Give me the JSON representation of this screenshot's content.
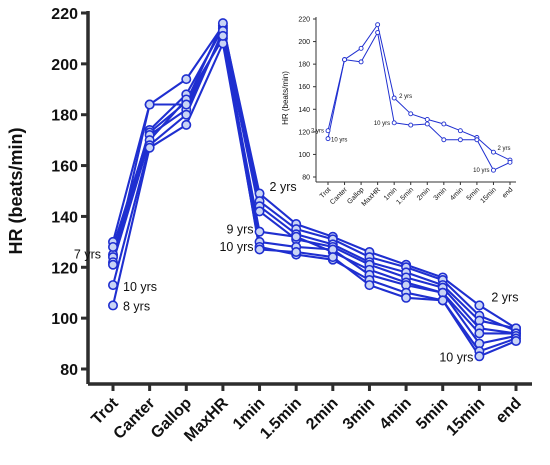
{
  "chart_data": [
    {
      "type": "line",
      "ylabel": "HR (beats/min)",
      "xlabel": "",
      "ylim": [
        80,
        220
      ],
      "yticks": [
        80,
        100,
        120,
        140,
        160,
        180,
        200,
        220
      ],
      "categories": [
        "Trot",
        "Canter",
        "Gallop",
        "MaxHR",
        "1min",
        "1.5min",
        "2min",
        "3min",
        "4min",
        "5min",
        "15min",
        "end"
      ],
      "color": "#1f2fd0",
      "series": [
        {
          "values": [
            130,
            184,
            194,
            215,
            149,
            137,
            132,
            126,
            121,
            116,
            105,
            96
          ]
        },
        {
          "values": [
            125,
            174,
            188,
            214,
            146,
            135,
            131,
            124,
            120,
            115,
            101,
            95
          ]
        },
        {
          "values": [
            128,
            173,
            185,
            216,
            144,
            133,
            129,
            122,
            118,
            113,
            99,
            96
          ]
        },
        {
          "values": [
            124,
            172,
            182,
            212,
            142,
            131,
            128,
            121,
            116,
            112,
            96,
            94
          ]
        },
        {
          "values": [
            122,
            170,
            186,
            210,
            134,
            132,
            126,
            119,
            114,
            110,
            94,
            94
          ]
        },
        {
          "values": [
            113,
            168,
            180,
            213,
            130,
            128,
            127,
            117,
            113,
            110,
            90,
            93
          ]
        },
        {
          "values": [
            105,
            167,
            176,
            208,
            128,
            125,
            123,
            115,
            110,
            107,
            87,
            92
          ]
        },
        {
          "values": [
            121,
            184,
            184,
            211,
            127,
            126,
            124,
            113,
            108,
            107,
            85,
            91
          ]
        }
      ],
      "annotations": [
        {
          "text": "7 yrs",
          "category": "Trot",
          "y": 125
        },
        {
          "text": "10 yrs",
          "category": "Trot",
          "y": 113
        },
        {
          "text": "8 yrs",
          "category": "Trot",
          "y": 105
        },
        {
          "text": "2 yrs",
          "category": "1min",
          "y": 150
        },
        {
          "text": "9 yrs",
          "category": "1min",
          "y": 134
        },
        {
          "text": "10 yrs",
          "category": "1min",
          "y": 128
        },
        {
          "text": "2 yrs",
          "category": "15min",
          "y": 105
        },
        {
          "text": "10 yrs",
          "category": "15min",
          "y": 85
        }
      ]
    },
    {
      "type": "line",
      "ylabel": "HR (beats/min)",
      "xlabel": "",
      "ylim": [
        80,
        220
      ],
      "yticks": [
        80,
        100,
        120,
        140,
        160,
        180,
        200,
        220
      ],
      "categories": [
        "Trot",
        "Canter",
        "Gallop",
        "MaxHR",
        "1min",
        "1.5min",
        "2min",
        "3min",
        "4min",
        "5min",
        "15min",
        "end"
      ],
      "color": "#1f2fd0",
      "series": [
        {
          "values": [
            121,
            184,
            194,
            215,
            150,
            136,
            131,
            127,
            121,
            115,
            102,
            95
          ]
        },
        {
          "values": [
            114,
            184,
            182,
            208,
            128,
            126,
            127,
            113,
            113,
            113,
            86,
            93
          ]
        }
      ],
      "annotations": [
        {
          "text": "2 yrs",
          "category": "Trot",
          "y": 121
        },
        {
          "text": "10 yrs",
          "category": "Trot",
          "y": 114
        },
        {
          "text": "2 yrs",
          "category": "1min",
          "y": 150
        },
        {
          "text": "10 yrs",
          "category": "1min",
          "y": 128
        },
        {
          "text": "2 yrs",
          "category": "15min",
          "y": 102
        },
        {
          "text": "10 yrs",
          "category": "15min",
          "y": 86
        }
      ]
    }
  ]
}
